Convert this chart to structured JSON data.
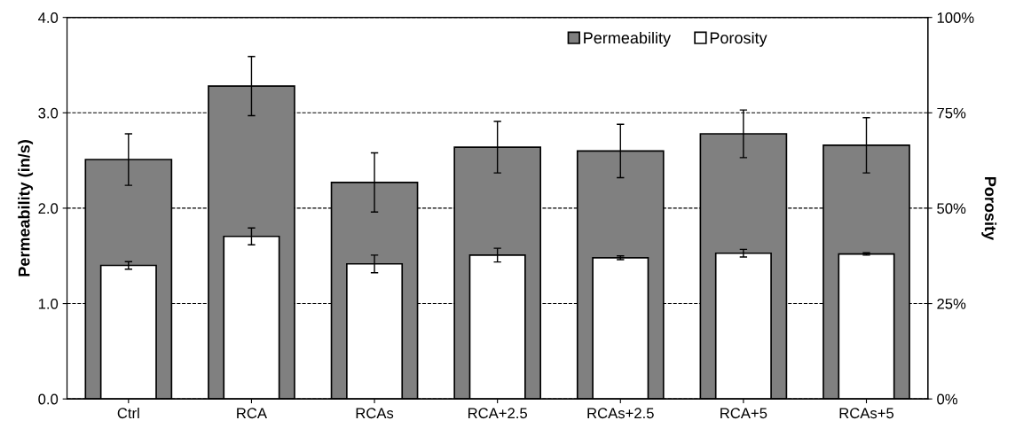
{
  "chart_data": {
    "type": "bar",
    "categories": [
      "Ctrl",
      "RCA",
      "RCAs",
      "RCA+2.5",
      "RCAs+2.5",
      "RCA+5",
      "RCAs+5"
    ],
    "ylabel": "Permeability (in/s)",
    "y2label": "Porosity",
    "ylim": [
      0,
      4
    ],
    "yticks": [
      {
        "value": 0,
        "label": "0.0"
      },
      {
        "value": 1,
        "label": "1.0"
      },
      {
        "value": 2,
        "label": "2.0"
      },
      {
        "value": 3,
        "label": "3.0"
      },
      {
        "value": 4,
        "label": "4.0"
      }
    ],
    "y2lim": [
      0,
      100
    ],
    "y2ticks": [
      {
        "value": 0,
        "label": "0%"
      },
      {
        "value": 25,
        "label": "25%"
      },
      {
        "value": 50,
        "label": "50%"
      },
      {
        "value": 75,
        "label": "75%"
      },
      {
        "value": 100,
        "label": "100%"
      }
    ],
    "series": [
      {
        "name": "Permeability",
        "color": "#808080",
        "values": [
          2.51,
          3.28,
          2.27,
          2.64,
          2.6,
          2.78,
          2.66
        ],
        "errors": [
          0.27,
          0.31,
          0.31,
          0.27,
          0.28,
          0.25,
          0.29
        ]
      },
      {
        "name": "Porosity",
        "color": "#ffffff",
        "axis": "y2",
        "values": [
          35,
          42.6,
          35.4,
          37.7,
          37,
          38.2,
          38
        ],
        "errors": [
          1,
          2.2,
          2.3,
          1.8,
          0.5,
          1,
          0.3
        ]
      }
    ],
    "grid": "y",
    "legend": "top right"
  }
}
